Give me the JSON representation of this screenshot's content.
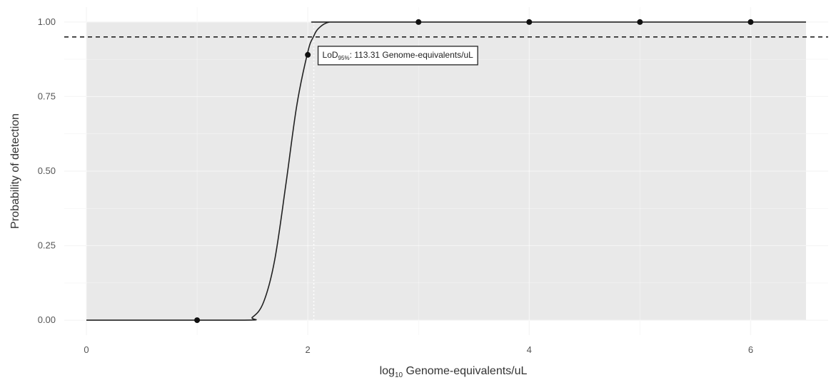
{
  "chart_data": {
    "type": "scatter",
    "title": "",
    "xlabel": {
      "prefix": "log",
      "subscript": "10",
      "rest": " Genome-equivalents/uL"
    },
    "ylabel": "Probability of detection",
    "xlim": [
      -0.2,
      6.7
    ],
    "ylim": [
      -0.05,
      1.05
    ],
    "x_ticks": [
      0,
      2,
      4,
      6
    ],
    "x_tick_labels": [
      "0",
      "2",
      "4",
      "6"
    ],
    "y_ticks": [
      0.0,
      0.25,
      0.5,
      0.75,
      1.0
    ],
    "y_tick_labels": [
      "0.00",
      "0.25",
      "0.50",
      "0.75",
      "1.00"
    ],
    "grid": true,
    "shaded_region": {
      "x": [
        0,
        6.5
      ],
      "y": [
        0,
        1
      ]
    },
    "points": {
      "x": [
        1,
        2,
        3,
        4,
        5,
        6
      ],
      "y": [
        0.0,
        0.89,
        1.0,
        1.0,
        1.0,
        1.0
      ]
    },
    "fit_curve": {
      "x": [
        0,
        1.4,
        1.5,
        1.6,
        1.7,
        1.8,
        1.9,
        2.0,
        2.05,
        2.1,
        2.2,
        2.4,
        6.5
      ],
      "y": [
        0.0,
        0.0,
        0.01,
        0.06,
        0.2,
        0.45,
        0.72,
        0.9,
        0.95,
        0.98,
        1.0,
        1.0,
        1.0
      ]
    },
    "threshold_line": {
      "y": 0.95,
      "style": "dashed"
    },
    "lod_line": {
      "x": 2.054,
      "style": "dotted"
    },
    "annotation": {
      "prefix": "LoD",
      "subscript": "95%",
      "text": ": 113.31 Genome-equivalents/uL"
    }
  }
}
